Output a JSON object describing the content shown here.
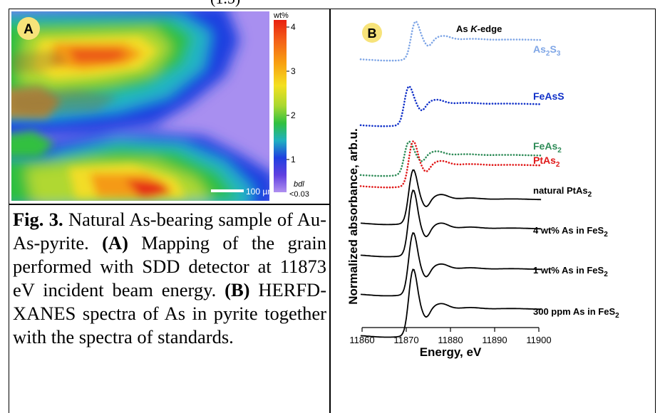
{
  "top_fragment": "(1.5)",
  "panel_a": {
    "label": "A",
    "scale_bar": "100 µm",
    "colorbar": {
      "unit": "wt%",
      "ticks": [
        "4",
        "3",
        "2",
        "1"
      ],
      "bottom_label": "bdl",
      "bottom_value": "<0.03",
      "colors": [
        "#e82010",
        "#f46018",
        "#f8a010",
        "#f4e020",
        "#a8d830",
        "#30c040",
        "#20b0c0",
        "#2040e0",
        "#6040e0",
        "#b090f0"
      ]
    }
  },
  "caption": {
    "fig_label": "Fig. 3.",
    "text1": "Natural As-bearing sample of Au-As-pyrite.",
    "a_label": "(A)",
    "text2": "Mapping of the grain performed with SDD detector at 11873 eV incident beam energy.",
    "b_label": "(B)",
    "text3": "HERFD-XANES spectra of As in pyrite together with the spectra of standards."
  },
  "panel_b": {
    "label": "B",
    "title": "As K-edge",
    "xlabel": "Energy, eV",
    "ylabel": "Normalized absorbance, arb.u.",
    "xticks": [
      "11860",
      "11870",
      "11880",
      "11890",
      "11900"
    ]
  },
  "chart_data": {
    "type": "line",
    "title": "As K-edge",
    "xlabel": "Energy, eV",
    "ylabel": "Normalized absorbance, arb.u.",
    "xlim": [
      11860,
      11900
    ],
    "series": [
      {
        "name": "As2S3",
        "label_main": "As",
        "label_sub1": "2",
        "label_mid": "S",
        "label_sub2": "3",
        "color": "#7fa6e6",
        "style": "dotted",
        "edge": 11871,
        "peak": 1.0
      },
      {
        "name": "FeAsS",
        "label_main": "FeAsS",
        "color": "#1030c8",
        "style": "dotted",
        "edge": 11869.5,
        "peak": 0.9
      },
      {
        "name": "FeAs2",
        "label_main": "FeAs",
        "label_sub1": "2",
        "color": "#2e8b57",
        "style": "dotted",
        "edge": 11869.5,
        "peak": 0.75
      },
      {
        "name": "PtAs2",
        "label_main": "PtAs",
        "label_sub1": "2",
        "color": "#e01818",
        "style": "dotted",
        "edge": 11870.5,
        "peak": 1.2
      },
      {
        "name": "natural PtAs2",
        "label_main": "natural PtAs",
        "label_sub1": "2",
        "color": "#000000",
        "style": "solid",
        "edge": 11870.5,
        "peak": 1.3
      },
      {
        "name": "4 wt% As in FeS2",
        "label_main": "4 wt% As in FeS",
        "label_sub1": "2",
        "color": "#000000",
        "style": "solid",
        "edge": 11870.5,
        "peak": 1.5
      },
      {
        "name": "1 wt% As in FeS2",
        "label_main": "1 wt% As in FeS",
        "label_sub1": "2",
        "color": "#000000",
        "style": "solid",
        "edge": 11870.5,
        "peak": 1.5
      },
      {
        "name": "300 ppm As in FeS2",
        "label_main": "300 ppm As in FeS",
        "label_sub1": "2",
        "color": "#000000",
        "style": "solid",
        "edge": 11870.5,
        "peak": 1.55
      }
    ]
  }
}
